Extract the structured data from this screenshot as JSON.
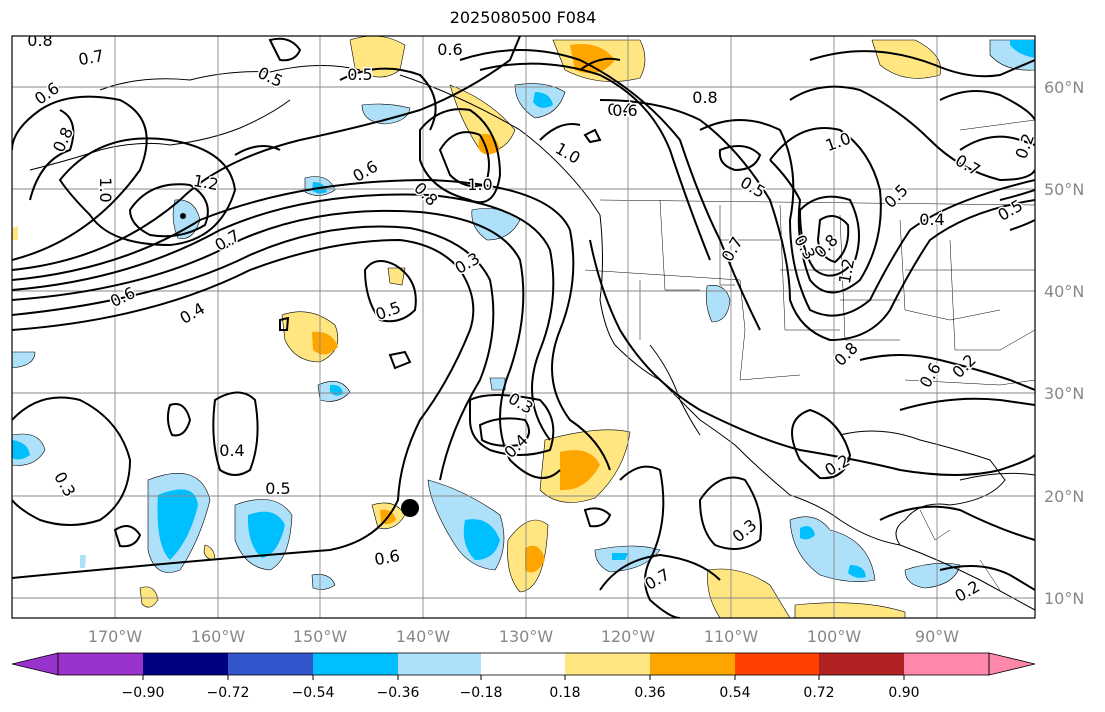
{
  "title": "2025080500 F084",
  "axes": {
    "lat_labels": [
      "60°N",
      "50°N",
      "40°N",
      "30°N",
      "20°N",
      "10°N"
    ],
    "lon_labels": [
      "170°W",
      "160°W",
      "150°W",
      "140°W",
      "130°W",
      "120°W",
      "110°W",
      "100°W",
      "90°W"
    ]
  },
  "colorbar": {
    "ticks": [
      "−0.90",
      "−0.72",
      "−0.54",
      "−0.36",
      "−0.18",
      "0.18",
      "0.36",
      "0.54",
      "0.72",
      "0.90"
    ],
    "colors": [
      "#9933cc",
      "#000080",
      "#3355cc",
      "#00bfff",
      "#aee0fa",
      "#ffffff",
      "#ffe680",
      "#ffa500",
      "#ff4000",
      "#b22222",
      "#ff88aa"
    ]
  },
  "contour_labels": [
    "0.8",
    "0.7",
    "0.6",
    "0.5",
    "0.5",
    "0.6",
    "0.6",
    "0.8",
    "1.0",
    "1.2",
    "1.0",
    "0.8",
    "0.7",
    "0.6",
    "0.4",
    "0.5",
    "0.3",
    "0.4",
    "0.6",
    "0.8",
    "1.0",
    "0.5",
    "0.7",
    "0.3",
    "0.8",
    "1.2",
    "1.0",
    "0.5",
    "0.7",
    "0.4",
    "0.5",
    "0.8",
    "0.6",
    "0.2",
    "0.3",
    "0.4",
    "0.4",
    "0.5",
    "0.6",
    "0.7",
    "0.3",
    "0.3",
    "0.2",
    "0.2",
    "0.2",
    "0.3",
    "0.3",
    "0.2"
  ]
}
